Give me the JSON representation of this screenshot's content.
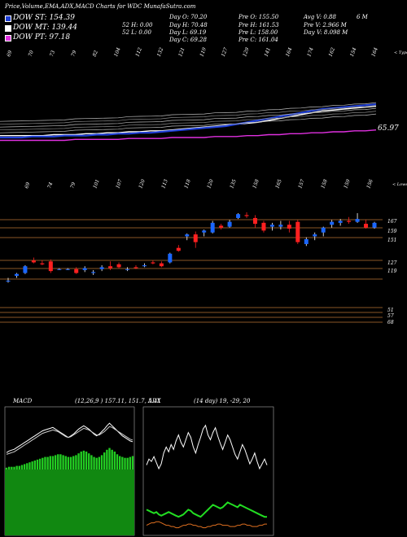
{
  "header": {
    "title": "Price,Volume,EMA,ADX,MACD Charts for WDC MunafaSutra.com",
    "legend": [
      {
        "label": "DOW ST: 154.39",
        "color": "#1f3fd6"
      },
      {
        "label": "DOW MT: 139.44",
        "color": "#ffffff"
      },
      {
        "label": "DOW PT: 97.18",
        "color": "#e030e0"
      }
    ],
    "stats_col1": [
      "Day O: 70.20",
      "Day H: 70.48",
      "Day L: 69.19",
      "Day C: 69.28"
    ],
    "stats_col1b": [
      "52 H: 0.00",
      "52 L: 0.00"
    ],
    "stats_col2": [
      "Pre O: 155.50",
      "Pre H: 161.53",
      "Pre L: 158.00",
      "Pre C: 161.04"
    ],
    "stats_col3": [
      "Avg V: 0.88",
      "Pre V: 2.966 M",
      "Day V: 8.098 M"
    ],
    "stats_col3_extra": "6 M"
  },
  "colors": {
    "bull": "#1a66ff",
    "bear": "#ff2020",
    "grid": "#b87333",
    "ema_fast": "#1f3fd6",
    "ema_slow": "#e030e0",
    "macd_green": "#22cc22",
    "adx_green": "#22dd22",
    "adx_orange": "#e07020"
  },
  "chart_data": [
    {
      "type": "line",
      "name": "ema_panel",
      "top_tick_labels": [
        "69",
        "70",
        "73",
        "79",
        "82",
        "104",
        "112",
        "132",
        "121",
        "119",
        "127",
        "129",
        "141",
        "164",
        "174",
        "162",
        "154",
        "164"
      ],
      "right_label": "< Type",
      "value_label": "65.97",
      "series": [
        {
          "color": "#ffffff",
          "values": [
            60,
            60,
            60,
            60,
            60,
            61,
            61,
            61,
            62,
            62,
            63,
            63,
            64,
            64,
            65,
            65,
            66,
            67,
            68,
            69,
            70,
            71,
            72,
            73,
            74,
            76,
            78,
            80,
            82,
            84,
            86,
            87,
            88,
            89,
            90,
            91
          ]
        },
        {
          "color": "#1f3fd6",
          "values": [
            58,
            58,
            58,
            59,
            59,
            59,
            60,
            60,
            60,
            61,
            61,
            62,
            62,
            63,
            63,
            64,
            65,
            66,
            67,
            68,
            69,
            70,
            72,
            74,
            76,
            78,
            80,
            82,
            84,
            86,
            88,
            89,
            90,
            91,
            92,
            93
          ]
        },
        {
          "color": "#e030e0",
          "values": [
            55,
            55,
            55,
            55,
            55,
            55,
            55,
            56,
            56,
            56,
            56,
            56,
            57,
            57,
            57,
            57,
            58,
            58,
            58,
            58,
            59,
            59,
            59,
            60,
            60,
            61,
            61,
            62,
            62,
            63,
            63,
            64,
            64,
            65,
            65,
            66
          ]
        }
      ]
    },
    {
      "type": "candlestick",
      "name": "price_panel",
      "top_tick_labels": [
        "69",
        "74",
        "79",
        "101",
        "107",
        "120",
        "113",
        "118",
        "120",
        "135",
        "158",
        "165",
        "157",
        "158",
        "159",
        "156"
      ],
      "right_label": "< Lower",
      "y_labels": [
        "167",
        "159",
        "151",
        "127",
        "119",
        "51",
        "57",
        "68"
      ],
      "ylim": [
        40,
        180
      ],
      "candles": [
        {
          "o": 100,
          "h": 103,
          "l": 98,
          "c": 100
        },
        {
          "o": 105,
          "h": 108,
          "l": 103,
          "c": 107
        },
        {
          "o": 108,
          "h": 116,
          "l": 107,
          "c": 115
        },
        {
          "o": 121,
          "h": 124,
          "l": 118,
          "c": 119
        },
        {
          "o": 118,
          "h": 121,
          "l": 116,
          "c": 117
        },
        {
          "o": 120,
          "h": 122,
          "l": 108,
          "c": 110
        },
        {
          "o": 112,
          "h": 113,
          "l": 111,
          "c": 112
        },
        {
          "o": 112,
          "h": 113,
          "l": 111,
          "c": 112
        },
        {
          "o": 112,
          "h": 114,
          "l": 107,
          "c": 108
        },
        {
          "o": 111,
          "h": 115,
          "l": 109,
          "c": 113
        },
        {
          "o": 108,
          "h": 111,
          "l": 106,
          "c": 109
        },
        {
          "o": 112,
          "h": 116,
          "l": 110,
          "c": 114
        },
        {
          "o": 115,
          "h": 120,
          "l": 111,
          "c": 113
        },
        {
          "o": 117,
          "h": 119,
          "l": 113,
          "c": 114
        },
        {
          "o": 112,
          "h": 114,
          "l": 110,
          "c": 112
        },
        {
          "o": 114,
          "h": 116,
          "l": 112,
          "c": 113
        },
        {
          "o": 115,
          "h": 118,
          "l": 114,
          "c": 116
        },
        {
          "o": 119,
          "h": 121,
          "l": 117,
          "c": 118
        },
        {
          "o": 118,
          "h": 120,
          "l": 114,
          "c": 115
        },
        {
          "o": 119,
          "h": 129,
          "l": 118,
          "c": 128
        },
        {
          "o": 134,
          "h": 137,
          "l": 130,
          "c": 131
        },
        {
          "o": 146,
          "h": 149,
          "l": 142,
          "c": 148
        },
        {
          "o": 148,
          "h": 151,
          "l": 134,
          "c": 140
        },
        {
          "o": 150,
          "h": 153,
          "l": 146,
          "c": 152
        },
        {
          "o": 150,
          "h": 162,
          "l": 149,
          "c": 160
        },
        {
          "o": 157,
          "h": 159,
          "l": 153,
          "c": 155
        },
        {
          "o": 156,
          "h": 163,
          "l": 155,
          "c": 161
        },
        {
          "o": 165,
          "h": 170,
          "l": 164,
          "c": 169
        },
        {
          "o": 168,
          "h": 171,
          "l": 165,
          "c": 167
        },
        {
          "o": 165,
          "h": 168,
          "l": 155,
          "c": 159
        },
        {
          "o": 160,
          "h": 162,
          "l": 150,
          "c": 152
        },
        {
          "o": 156,
          "h": 160,
          "l": 152,
          "c": 158
        },
        {
          "o": 156,
          "h": 162,
          "l": 153,
          "c": 158
        },
        {
          "o": 158,
          "h": 162,
          "l": 150,
          "c": 154
        },
        {
          "o": 161,
          "h": 163,
          "l": 138,
          "c": 140
        },
        {
          "o": 138,
          "h": 145,
          "l": 136,
          "c": 143
        },
        {
          "o": 146,
          "h": 150,
          "l": 142,
          "c": 148
        },
        {
          "o": 150,
          "h": 156,
          "l": 146,
          "c": 155
        },
        {
          "o": 158,
          "h": 163,
          "l": 155,
          "c": 161
        },
        {
          "o": 160,
          "h": 164,
          "l": 157,
          "c": 162
        },
        {
          "o": 162,
          "h": 166,
          "l": 159,
          "c": 161
        },
        {
          "o": 161,
          "h": 170,
          "l": 160,
          "c": 164
        },
        {
          "o": 159,
          "h": 163,
          "l": 154,
          "c": 155
        },
        {
          "o": 155,
          "h": 161,
          "l": 154,
          "c": 160
        }
      ]
    },
    {
      "type": "area",
      "name": "macd_panel",
      "label": "MACD",
      "params": "(12,26,9 ) 157.11, 151.7, 5.41",
      "histogram": [
        2,
        3,
        3,
        3,
        4,
        4,
        5,
        6,
        7,
        8,
        9,
        10,
        11,
        12,
        13,
        14,
        14,
        15,
        15,
        16,
        17,
        17,
        16,
        15,
        14,
        14,
        15,
        16,
        18,
        20,
        21,
        20,
        18,
        16,
        14,
        13,
        14,
        16,
        19,
        22,
        24,
        22,
        20,
        17,
        15,
        14,
        13,
        13,
        14,
        15
      ],
      "series": [
        {
          "color": "#ffffff",
          "values": [
            20,
            22,
            23,
            24,
            26,
            28,
            30,
            32,
            34,
            36,
            38,
            40,
            42,
            44,
            46,
            47,
            48,
            49,
            50,
            48,
            46,
            44,
            42,
            40,
            38,
            40,
            42,
            45,
            48,
            50,
            52,
            50,
            48,
            45,
            42,
            40,
            42,
            45,
            48,
            52,
            55,
            52,
            49,
            46,
            43,
            40,
            38,
            36,
            34,
            33
          ]
        },
        {
          "color": "#cccccc",
          "values": [
            18,
            19,
            20,
            21,
            23,
            25,
            27,
            29,
            31,
            33,
            35,
            37,
            39,
            41,
            43,
            44,
            45,
            46,
            47,
            46,
            45,
            43,
            41,
            39,
            38,
            39,
            41,
            43,
            45,
            47,
            49,
            48,
            47,
            45,
            43,
            41,
            41,
            43,
            45,
            48,
            51,
            50,
            48,
            46,
            44,
            42,
            40,
            38,
            36,
            35
          ]
        }
      ]
    },
    {
      "type": "line",
      "name": "adx_panel",
      "label": "ADX",
      "params": "(14 day) 19, -29, 20",
      "series": [
        {
          "color": "#ffffff",
          "values": [
            55,
            60,
            58,
            62,
            57,
            52,
            56,
            65,
            70,
            66,
            72,
            68,
            75,
            80,
            74,
            70,
            76,
            82,
            78,
            70,
            65,
            72,
            78,
            85,
            88,
            80,
            76,
            82,
            86,
            79,
            73,
            68,
            74,
            80,
            76,
            70,
            64,
            60,
            66,
            72,
            68,
            62,
            56,
            60,
            65,
            58,
            52,
            56,
            60,
            55
          ]
        },
        {
          "color": "#22dd22",
          "values": [
            18,
            17,
            16,
            15,
            16,
            14,
            13,
            14,
            15,
            16,
            15,
            14,
            13,
            12,
            13,
            14,
            16,
            18,
            17,
            15,
            14,
            13,
            12,
            14,
            16,
            18,
            20,
            22,
            21,
            20,
            19,
            20,
            22,
            24,
            23,
            22,
            21,
            20,
            22,
            21,
            20,
            19,
            18,
            17,
            16,
            15,
            14,
            13,
            12,
            12
          ]
        },
        {
          "color": "#e07020",
          "values": [
            5,
            6,
            7,
            7,
            8,
            8,
            7,
            6,
            5,
            5,
            4,
            4,
            3,
            3,
            4,
            5,
            5,
            6,
            6,
            5,
            5,
            4,
            4,
            3,
            3,
            4,
            4,
            5,
            5,
            6,
            6,
            5,
            5,
            5,
            4,
            4,
            4,
            5,
            5,
            6,
            6,
            5,
            5,
            4,
            4,
            4,
            5,
            5,
            6,
            6
          ]
        }
      ]
    }
  ]
}
